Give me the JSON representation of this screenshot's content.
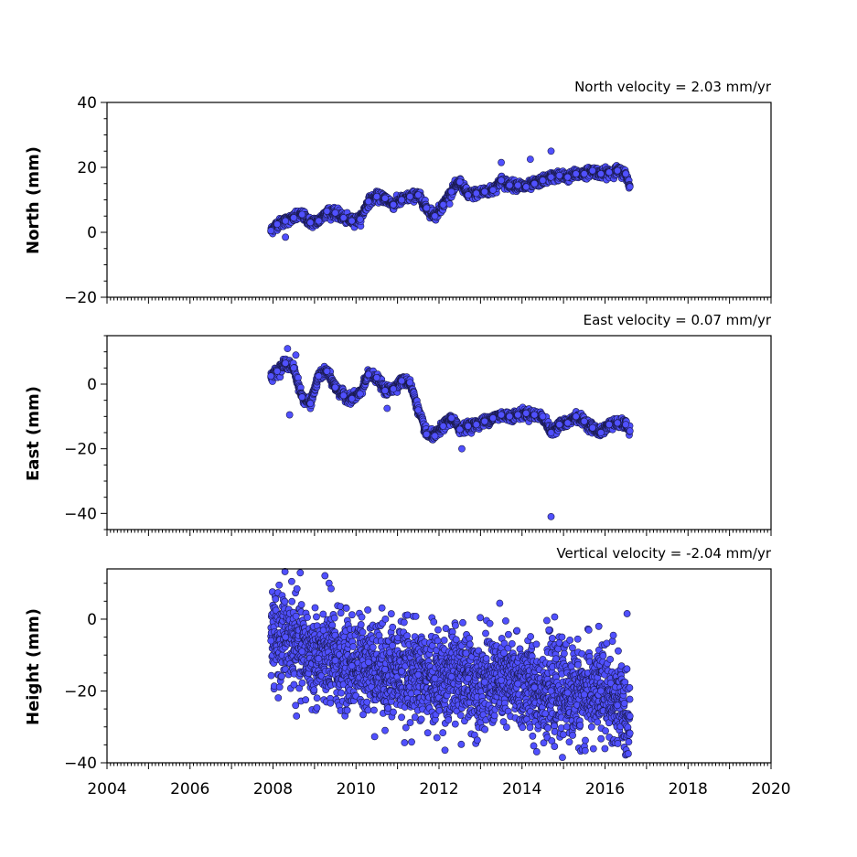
{
  "chart_data": [
    {
      "type": "scatter",
      "title": "North velocity = 2.03 mm/yr",
      "xlabel": "",
      "ylabel": "North (mm)",
      "xlim": [
        2004,
        2020
      ],
      "ylim": [
        -20,
        40
      ],
      "yticks": [
        -20,
        0,
        20,
        40
      ],
      "ytick_labels": [
        "−20",
        "0",
        "20",
        "40"
      ],
      "show_xtick_labels": false,
      "grid": false,
      "marker_color": "#5050ff",
      "marker_edge": "#1a1a4d",
      "series": [
        {
          "x": [
            2007.95,
            2008.1,
            2008.3,
            2008.5,
            2008.7,
            2008.9,
            2009.1,
            2009.3,
            2009.5,
            2009.7,
            2009.9,
            2010.1,
            2010.3,
            2010.5,
            2010.7,
            2010.9,
            2011.1,
            2011.3,
            2011.5,
            2011.7,
            2011.9,
            2012.1,
            2012.3,
            2012.5,
            2012.7,
            2012.9,
            2013.1,
            2013.3,
            2013.5,
            2013.7,
            2013.9,
            2014.1,
            2014.3,
            2014.5,
            2014.7,
            2014.9,
            2015.1,
            2015.3,
            2015.5,
            2015.7,
            2015.9,
            2016.1,
            2016.3,
            2016.5,
            2016.6
          ],
          "y": [
            0.5,
            2.5,
            3.5,
            4.5,
            5.5,
            3.0,
            3.5,
            6.5,
            6.0,
            4.5,
            3.5,
            4.0,
            9.5,
            11.0,
            10.5,
            8.5,
            10.0,
            11.0,
            11.5,
            7.5,
            5.0,
            8.5,
            12.5,
            15.5,
            11.5,
            12.0,
            12.5,
            13.0,
            16.0,
            14.5,
            14.5,
            14.0,
            15.0,
            16.0,
            17.0,
            17.5,
            17.0,
            18.0,
            18.0,
            19.0,
            18.0,
            18.5,
            19.0,
            18.0,
            14.0
          ]
        }
      ],
      "outliers": {
        "x": [
          2008.3,
          2014.2,
          2014.7,
          2013.5
        ],
        "y": [
          -1.5,
          22.5,
          25.0,
          21.5
        ]
      }
    },
    {
      "type": "scatter",
      "title": "East velocity = 0.07 mm/yr",
      "xlabel": "",
      "ylabel": "East (mm)",
      "xlim": [
        2004,
        2020
      ],
      "ylim": [
        -45,
        15
      ],
      "yticks": [
        -40,
        -20,
        0
      ],
      "ytick_labels": [
        "−40",
        "−20",
        "0"
      ],
      "show_xtick_labels": false,
      "grid": false,
      "marker_color": "#5050ff",
      "marker_edge": "#1a1a4d",
      "series": [
        {
          "x": [
            2007.95,
            2008.1,
            2008.3,
            2008.5,
            2008.7,
            2008.9,
            2009.1,
            2009.3,
            2009.5,
            2009.7,
            2009.9,
            2010.1,
            2010.3,
            2010.5,
            2010.7,
            2010.9,
            2011.1,
            2011.3,
            2011.5,
            2011.7,
            2011.9,
            2012.1,
            2012.3,
            2012.5,
            2012.7,
            2012.9,
            2013.1,
            2013.3,
            2013.5,
            2013.7,
            2013.9,
            2014.1,
            2014.3,
            2014.5,
            2014.7,
            2014.9,
            2015.1,
            2015.3,
            2015.5,
            2015.7,
            2015.9,
            2016.1,
            2016.3,
            2016.5,
            2016.6
          ],
          "y": [
            2.5,
            4.0,
            6.5,
            5.0,
            -4.0,
            -6.0,
            2.5,
            4.0,
            -1.0,
            -3.5,
            -4.5,
            -3.0,
            3.0,
            2.0,
            -2.0,
            -1.5,
            1.0,
            0.5,
            -8.0,
            -15.5,
            -16.0,
            -13.0,
            -10.5,
            -14.0,
            -13.0,
            -12.5,
            -11.5,
            -10.5,
            -9.5,
            -10.0,
            -9.5,
            -9.0,
            -9.5,
            -10.0,
            -15.0,
            -12.5,
            -12.0,
            -10.0,
            -11.5,
            -13.5,
            -15.0,
            -12.5,
            -12.0,
            -12.5,
            -14.5
          ]
        }
      ],
      "outliers": {
        "x": [
          2008.35,
          2008.55,
          2008.4,
          2010.75,
          2014.7,
          2012.55
        ],
        "y": [
          11.0,
          9.0,
          -9.5,
          -7.5,
          -41.0,
          -20.0
        ]
      }
    },
    {
      "type": "scatter",
      "title": "Vertical velocity = -2.04 mm/yr",
      "xlabel": "",
      "ylabel": "Height (mm)",
      "xlim": [
        2004,
        2020
      ],
      "ylim": [
        -40,
        14
      ],
      "yticks": [
        -40,
        -20,
        0
      ],
      "ytick_labels": [
        "−40",
        "−20",
        "0"
      ],
      "xticks": [
        2004,
        2006,
        2008,
        2010,
        2012,
        2014,
        2016,
        2018,
        2020
      ],
      "xtick_labels": [
        "2004",
        "2006",
        "2008",
        "2010",
        "2012",
        "2014",
        "2016",
        "2018",
        "2020"
      ],
      "show_xtick_labels": true,
      "grid": false,
      "marker_color": "#5050ff",
      "marker_edge": "#1a1a4d",
      "series": [
        {
          "x": [
            2007.95,
            2008.3,
            2008.7,
            2009.1,
            2009.5,
            2009.9,
            2010.3,
            2010.7,
            2011.1,
            2011.5,
            2011.9,
            2012.3,
            2012.7,
            2013.1,
            2013.5,
            2013.9,
            2014.3,
            2014.7,
            2015.1,
            2015.5,
            2015.9,
            2016.3,
            2016.6
          ],
          "y": [
            -6.0,
            -5.0,
            -9.0,
            -11.0,
            -11.5,
            -13.0,
            -12.0,
            -14.0,
            -14.5,
            -15.5,
            -16.5,
            -16.0,
            -16.5,
            -17.5,
            -17.0,
            -18.0,
            -19.0,
            -20.0,
            -20.5,
            -21.0,
            -20.0,
            -24.0,
            -27.0
          ]
        }
      ],
      "spread": 6.5,
      "outliers": {
        "x": [
          2008.45,
          2009.35,
          2009.4,
          2010.85,
          2014.65,
          2015.85,
          2016.2,
          2011.95,
          2010.7
        ],
        "y": [
          10.5,
          10.0,
          8.5,
          1.5,
          -3.0,
          -2.0,
          -4.5,
          -33.0,
          -31.0
        ]
      }
    }
  ]
}
